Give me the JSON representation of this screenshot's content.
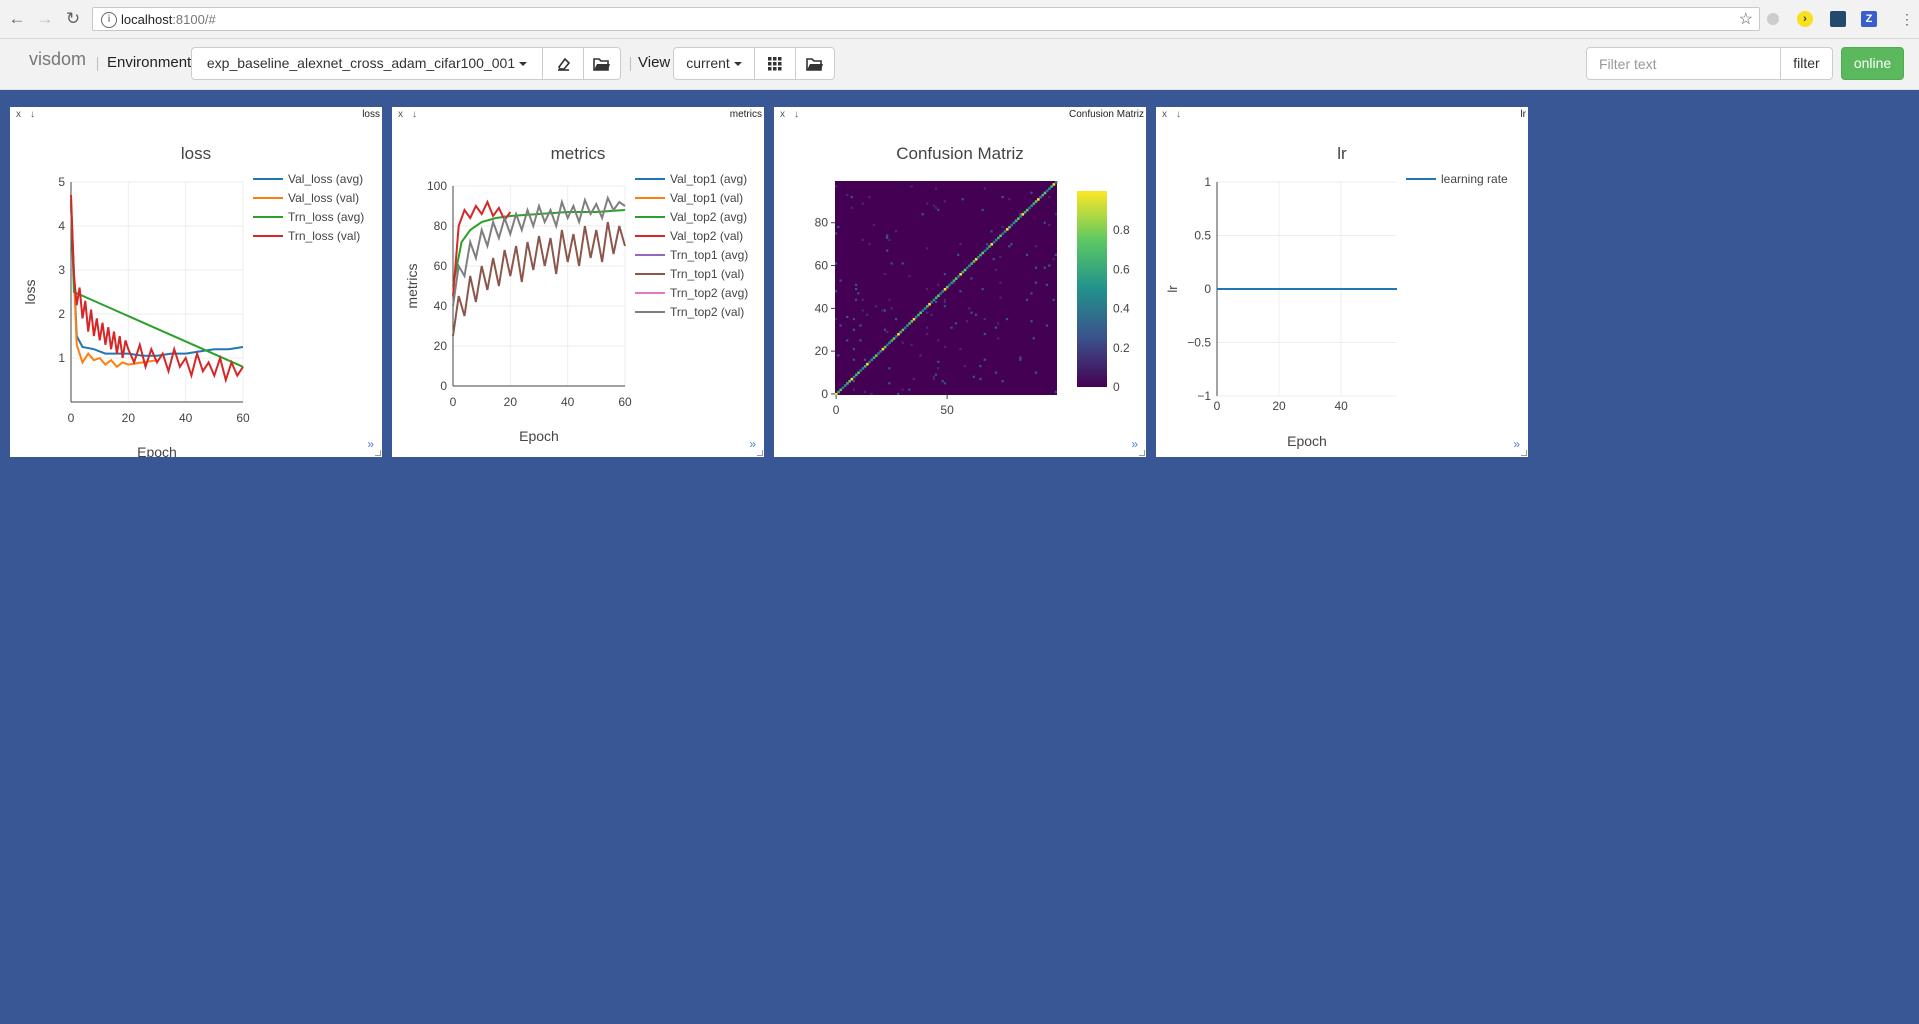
{
  "browser": {
    "url_host": "localhost",
    "url_path": ":8100/#"
  },
  "toolbar": {
    "brand": "visdom",
    "environment_label": "Environment",
    "environment_value": "exp_baseline_alexnet_cross_adam_cifar100_001",
    "view_label": "View",
    "view_value": "current",
    "filter_placeholder": "Filter text",
    "filter_button": "filter",
    "online_button": "online"
  },
  "icons": [
    "back-icon",
    "forward-icon",
    "reload-icon",
    "info-icon",
    "star-icon",
    "clear-env-icon",
    "folder-icon",
    "grid-icon"
  ],
  "colors": {
    "background": "#3a5795",
    "online": "#5cb85c",
    "series": [
      "#1f77b4",
      "#ff7f0e",
      "#2ca02c",
      "#d62728",
      "#9467bd",
      "#8c564b",
      "#e377c2",
      "#7f7f7f"
    ]
  },
  "panes": [
    {
      "close": "x",
      "save": "↓",
      "title": "loss",
      "more": "»"
    },
    {
      "close": "x",
      "save": "↓",
      "title": "metrics",
      "more": "»"
    },
    {
      "close": "x",
      "save": "↓",
      "title": "Confusion Matriz",
      "more": "»"
    },
    {
      "close": "x",
      "save": "↓",
      "title": "lr",
      "more": "»"
    }
  ],
  "chart_data": [
    {
      "type": "line",
      "title": "loss",
      "xlabel": "Epoch",
      "ylabel": "loss",
      "xlim": [
        0,
        60
      ],
      "ylim": [
        0,
        5
      ],
      "xticks": [
        "0",
        "20",
        "40",
        "60"
      ],
      "yticks": [
        "1",
        "2",
        "3",
        "4",
        "5"
      ],
      "series": [
        {
          "name": "Val_loss (avg)",
          "x": [
            0,
            2,
            4,
            8,
            12,
            16,
            20,
            25,
            30,
            35,
            40,
            45,
            50,
            55,
            60
          ],
          "values": [
            4.5,
            1.5,
            1.25,
            1.2,
            1.1,
            1.1,
            1.1,
            1.05,
            1.05,
            1.1,
            1.1,
            1.15,
            1.2,
            1.2,
            1.25
          ]
        },
        {
          "name": "Val_loss (val)",
          "x": [
            0,
            2,
            4,
            6,
            8,
            10,
            12,
            14,
            16,
            18,
            20,
            25,
            30
          ],
          "values": [
            4.5,
            1.3,
            0.9,
            1.1,
            0.95,
            1.0,
            0.85,
            0.95,
            0.8,
            0.9,
            0.85,
            0.9,
            0.95
          ]
        },
        {
          "name": "Trn_loss (avg)",
          "x": [
            0,
            1,
            60
          ],
          "values": [
            4.6,
            2.5,
            0.8
          ]
        },
        {
          "name": "Trn_loss (val)",
          "x": [
            0,
            1,
            2,
            3,
            4,
            5,
            6,
            7,
            8,
            9,
            10,
            11,
            12,
            13,
            14,
            15,
            16,
            17,
            18,
            19,
            20,
            22,
            24,
            26,
            28,
            30,
            32,
            34,
            36,
            38,
            40,
            42,
            44,
            46,
            48,
            50,
            52,
            54,
            56,
            58,
            60
          ],
          "values": [
            4.7,
            2.9,
            2.2,
            2.6,
            1.9,
            2.3,
            1.6,
            2.1,
            1.5,
            1.9,
            1.4,
            1.8,
            1.3,
            1.7,
            1.2,
            1.6,
            1.1,
            1.5,
            1.0,
            1.4,
            1.2,
            0.9,
            1.3,
            0.8,
            1.2,
            0.9,
            1.1,
            0.7,
            1.2,
            0.8,
            1.0,
            0.6,
            1.1,
            0.7,
            0.9,
            0.6,
            1.0,
            0.5,
            0.9,
            0.6,
            0.8
          ]
        }
      ]
    },
    {
      "type": "line",
      "title": "metrics",
      "xlabel": "Epoch",
      "ylabel": "metrics",
      "xlim": [
        0,
        60
      ],
      "ylim": [
        0,
        100
      ],
      "xticks": [
        "0",
        "20",
        "40",
        "60"
      ],
      "yticks": [
        "0",
        "20",
        "40",
        "60",
        "80",
        "100"
      ],
      "series": [
        {
          "name": "Val_top1 (avg)",
          "x": [],
          "values": []
        },
        {
          "name": "Val_top1 (val)",
          "x": [],
          "values": []
        },
        {
          "name": "Val_top2 (avg)",
          "x": [
            0,
            3,
            6,
            10,
            15,
            20,
            30,
            40,
            50,
            60
          ],
          "values": [
            50,
            72,
            78,
            82,
            84,
            85,
            86,
            87,
            87,
            88
          ]
        },
        {
          "name": "Val_top2 (val)",
          "x": [
            0,
            2,
            4,
            6,
            8,
            10,
            12,
            14,
            16,
            18,
            20
          ],
          "values": [
            45,
            80,
            88,
            84,
            90,
            86,
            92,
            85,
            89,
            83,
            87
          ]
        },
        {
          "name": "Trn_top1 (avg)",
          "x": [],
          "values": []
        },
        {
          "name": "Trn_top1 (val)",
          "x": [
            0,
            2,
            4,
            6,
            8,
            10,
            12,
            14,
            16,
            18,
            20,
            22,
            24,
            26,
            28,
            30,
            32,
            34,
            36,
            38,
            40,
            42,
            44,
            46,
            48,
            50,
            52,
            54,
            56,
            58,
            60
          ],
          "values": [
            25,
            45,
            35,
            55,
            42,
            60,
            48,
            64,
            50,
            68,
            55,
            70,
            52,
            72,
            58,
            75,
            60,
            74,
            56,
            78,
            62,
            76,
            60,
            80,
            64,
            78,
            62,
            82,
            66,
            80,
            70
          ]
        },
        {
          "name": "Trn_top2 (avg)",
          "x": [],
          "values": []
        },
        {
          "name": "Trn_top2 (val)",
          "x": [
            0,
            2,
            4,
            6,
            8,
            10,
            12,
            14,
            16,
            18,
            20,
            22,
            24,
            26,
            28,
            30,
            32,
            34,
            36,
            38,
            40,
            42,
            44,
            46,
            48,
            50,
            52,
            54,
            56,
            58,
            60
          ],
          "values": [
            40,
            60,
            55,
            72,
            64,
            78,
            70,
            82,
            74,
            84,
            76,
            86,
            78,
            88,
            80,
            90,
            82,
            88,
            80,
            92,
            84,
            90,
            82,
            93,
            86,
            91,
            84,
            94,
            88,
            92,
            90
          ]
        }
      ]
    },
    {
      "type": "heatmap",
      "title": "Confusion Matriz",
      "xlim": [
        0,
        100
      ],
      "ylim": [
        0,
        100
      ],
      "xticks": [
        "0",
        "50"
      ],
      "yticks": [
        "0",
        "20",
        "40",
        "60",
        "80"
      ],
      "colorbar_ticks": [
        "0",
        "0.2",
        "0.4",
        "0.6",
        "0.8"
      ],
      "description_values": {
        "diagonal": 0.75,
        "off_diagonal": 0.0
      }
    },
    {
      "type": "line",
      "title": "lr",
      "xlabel": "Epoch",
      "ylabel": "lr",
      "xlim": [
        0,
        58
      ],
      "ylim": [
        -1,
        1
      ],
      "xticks": [
        "0",
        "20",
        "40"
      ],
      "yticks": [
        "−1",
        "−0.5",
        "0",
        "0.5",
        "1"
      ],
      "series": [
        {
          "name": "learning rate",
          "x": [
            0,
            58
          ],
          "values": [
            0.0001,
            0.0001
          ]
        }
      ]
    }
  ]
}
